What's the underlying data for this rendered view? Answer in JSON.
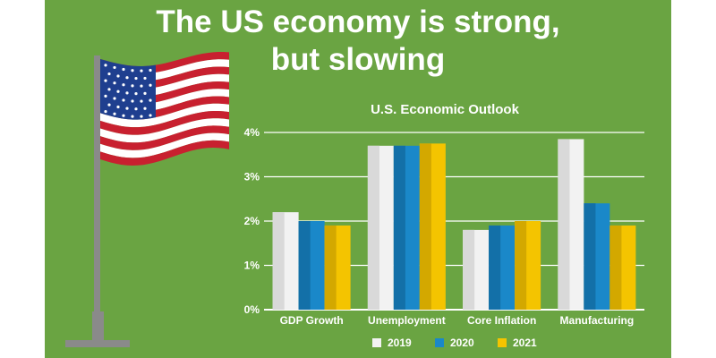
{
  "headline": {
    "line1": "The US economy is strong,",
    "line2": "but slowing"
  },
  "colors": {
    "background": "#6aa442",
    "gridline": "#ffffff",
    "text": "#ffffff",
    "flag_red": "#c8202f",
    "flag_blue": "#1f3f8f",
    "pole": "#8a8a8a"
  },
  "chart_data": {
    "type": "bar",
    "title": "U.S. Economic Outlook",
    "categories": [
      "GDP Growth",
      "Unemployment",
      "Core Inflation",
      "Manufacturing"
    ],
    "series": [
      {
        "name": "2019",
        "values": [
          2.2,
          3.7,
          1.8,
          3.85
        ],
        "color": "#f2f2f2",
        "shade": "#d9d9d9"
      },
      {
        "name": "2020",
        "values": [
          2.0,
          3.7,
          1.9,
          2.4
        ],
        "color": "#1a88c9",
        "shade": "#1370a8"
      },
      {
        "name": "2021",
        "values": [
          1.9,
          3.75,
          2.0,
          1.9
        ],
        "color": "#f4c400",
        "shade": "#d3a800"
      }
    ],
    "yticks": [
      "0%",
      "1%",
      "2%",
      "3%",
      "4%"
    ],
    "ylim": [
      0,
      4
    ],
    "xlabel": "",
    "ylabel": "",
    "legend_position": "bottom",
    "grid": true
  }
}
